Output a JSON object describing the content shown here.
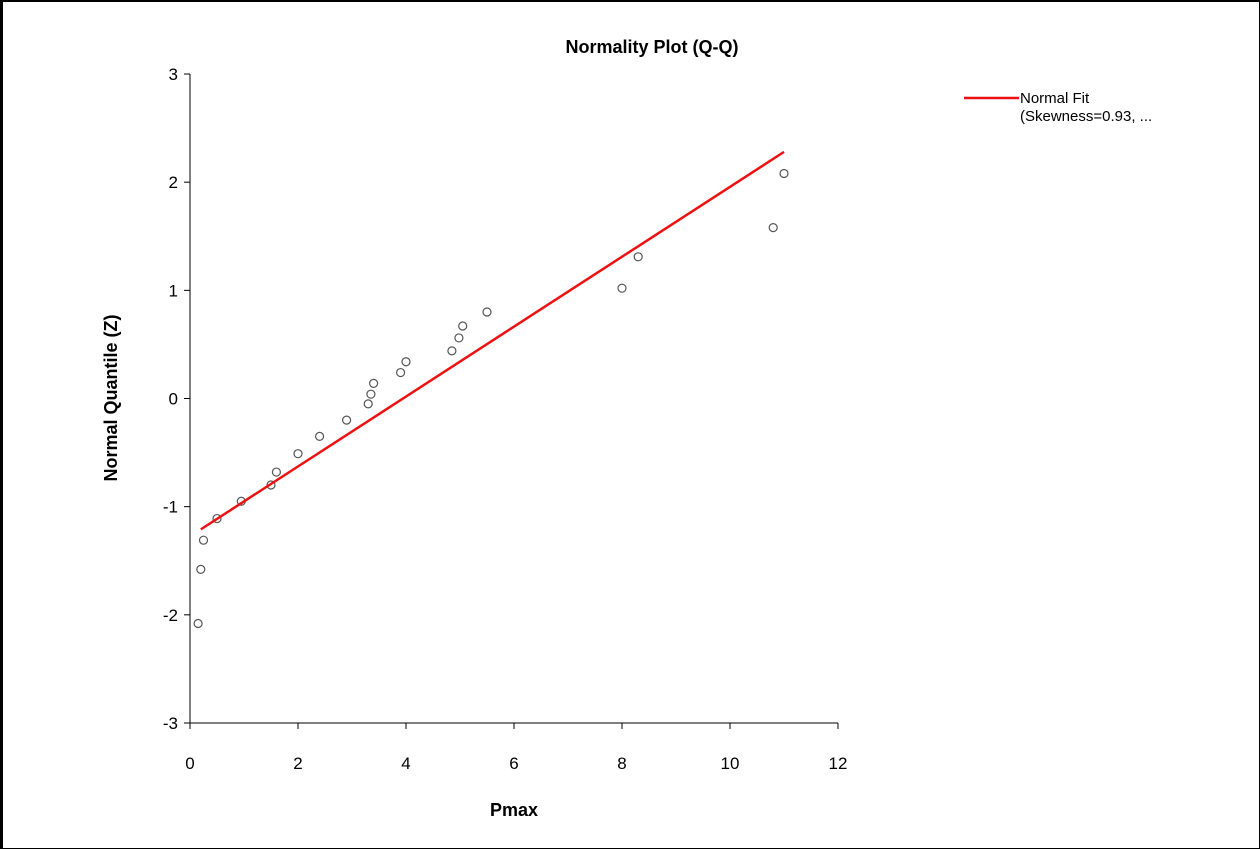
{
  "chart_data": {
    "type": "scatter",
    "title": "Normality Plot (Q-Q)",
    "xlabel": "Pmax",
    "ylabel": "Normal Quantile (Z)",
    "xlim": [
      0,
      12
    ],
    "ylim": [
      -3,
      3
    ],
    "xticks": [
      0,
      2,
      4,
      6,
      8,
      10,
      12
    ],
    "yticks": [
      -3,
      -2,
      -1,
      0,
      1,
      2,
      3
    ],
    "grid": false,
    "legend_position": "top-right",
    "series": [
      {
        "kind": "points",
        "marker": "open-circle",
        "color": "#555555",
        "points": [
          [
            0.15,
            -2.08
          ],
          [
            0.2,
            -1.58
          ],
          [
            0.25,
            -1.31
          ],
          [
            0.5,
            -1.11
          ],
          [
            0.95,
            -0.95
          ],
          [
            1.5,
            -0.8
          ],
          [
            1.6,
            -0.68
          ],
          [
            2.0,
            -0.51
          ],
          [
            2.4,
            -0.35
          ],
          [
            2.9,
            -0.2
          ],
          [
            3.3,
            -0.05
          ],
          [
            3.35,
            0.04
          ],
          [
            3.4,
            0.14
          ],
          [
            3.9,
            0.24
          ],
          [
            4.0,
            0.34
          ],
          [
            4.85,
            0.44
          ],
          [
            4.98,
            0.56
          ],
          [
            5.05,
            0.67
          ],
          [
            5.5,
            0.8
          ],
          [
            8.0,
            1.02
          ],
          [
            8.3,
            1.31
          ],
          [
            10.8,
            1.58
          ],
          [
            11.0,
            2.08
          ]
        ]
      },
      {
        "kind": "line",
        "name": "Normal Fit",
        "legend_text_lines": [
          "Normal Fit",
          "(Skewness=0.93, ..."
        ],
        "color": "#ee1111",
        "points": [
          [
            0.2,
            -1.21
          ],
          [
            11.0,
            2.28
          ]
        ]
      }
    ]
  }
}
